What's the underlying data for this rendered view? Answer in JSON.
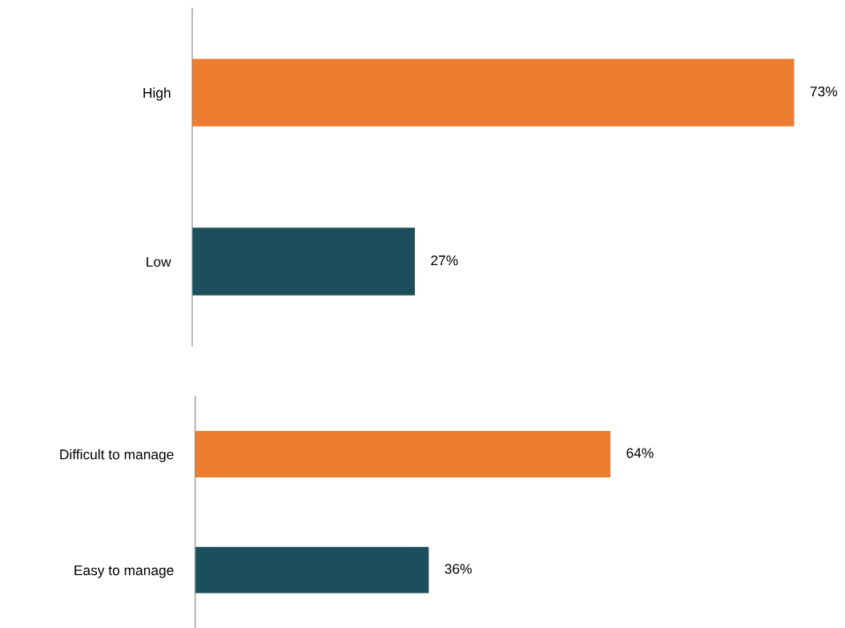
{
  "chart_data": [
    {
      "type": "bar",
      "orientation": "horizontal",
      "categories": [
        "High",
        "Low"
      ],
      "values": [
        73,
        27
      ],
      "colors": [
        "#ed7d31",
        "#1b4f5c"
      ],
      "value_labels": [
        "73%",
        "27%"
      ],
      "tick_labels": "y",
      "grid": false,
      "legend": false
    },
    {
      "type": "bar",
      "orientation": "horizontal",
      "categories": [
        "Difficult to manage",
        "Easy to manage"
      ],
      "values": [
        64,
        36
      ],
      "colors": [
        "#ed7d31",
        "#1b4f5c"
      ],
      "value_labels": [
        "64%",
        "36%"
      ],
      "tick_labels": "y",
      "grid": false,
      "legend": false
    }
  ]
}
